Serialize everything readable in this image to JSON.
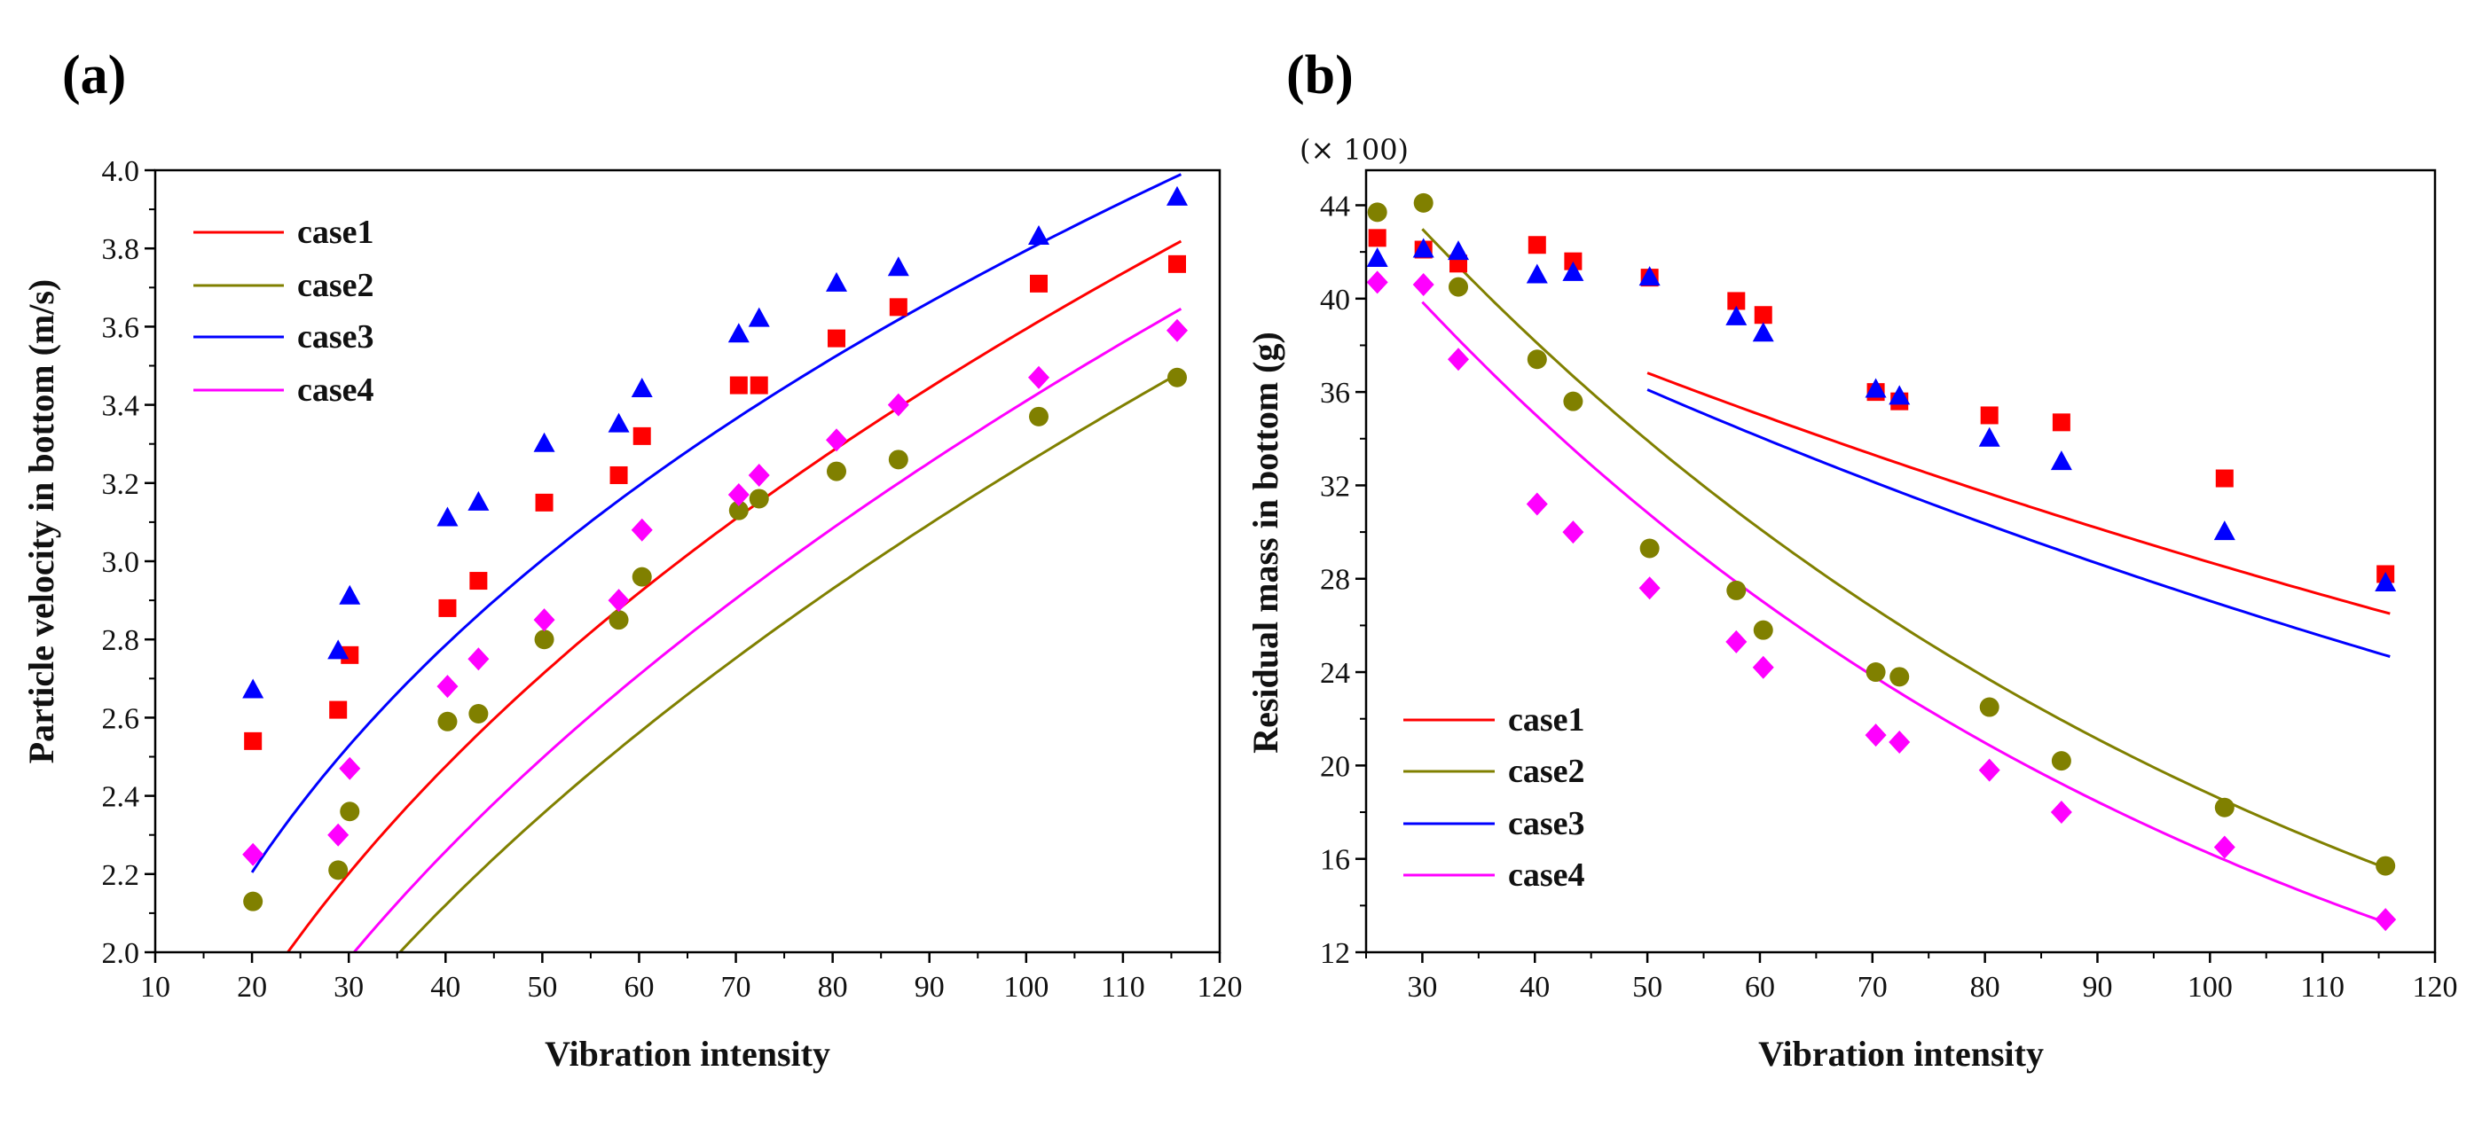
{
  "chart_data": [
    {
      "type": "scatter",
      "panel": "(a)",
      "xlabel": "Vibration intensity",
      "ylabel": "Particle velocity in bottom (m/s)",
      "xlim": [
        10,
        120
      ],
      "ylim": [
        2.0,
        4.0
      ],
      "xticks": [
        10,
        20,
        30,
        40,
        50,
        60,
        70,
        80,
        90,
        100,
        110,
        120
      ],
      "yticks": [
        2.0,
        2.2,
        2.4,
        2.6,
        2.8,
        3.0,
        3.2,
        3.4,
        3.6,
        3.8,
        4.0
      ],
      "xtick_labels": [
        "10",
        "20",
        "30",
        "40",
        "50",
        "60",
        "70",
        "80",
        "90",
        "100",
        "110",
        "120"
      ],
      "ytick_labels": [
        "2.0",
        "2.2",
        "2.4",
        "2.6",
        "2.8",
        "3.0",
        "3.2",
        "3.4",
        "3.6",
        "3.8",
        "4.0"
      ],
      "legend_position": "top-left",
      "series": [
        {
          "name": "case1",
          "color": "#ff0000",
          "marker": "square",
          "x": [
            20.1,
            28.9,
            30.1,
            40.2,
            43.4,
            50.2,
            57.9,
            60.3,
            70.3,
            72.4,
            80.4,
            86.8,
            101.3,
            115.6
          ],
          "y": [
            2.54,
            2.62,
            2.76,
            2.88,
            2.95,
            3.15,
            3.22,
            3.32,
            3.45,
            3.45,
            3.57,
            3.65,
            3.71,
            3.76
          ],
          "fit": {
            "x0": 20,
            "x1": 116,
            "a": 0.5511,
            "b": 0.4072
          }
        },
        {
          "name": "case2",
          "color": "#808000",
          "marker": "circle",
          "x": [
            20.1,
            28.9,
            30.1,
            40.2,
            43.4,
            50.2,
            57.9,
            60.3,
            70.3,
            72.4,
            80.4,
            86.8,
            101.3,
            115.6
          ],
          "y": [
            2.13,
            2.21,
            2.36,
            2.59,
            2.61,
            2.8,
            2.85,
            2.96,
            3.13,
            3.16,
            3.23,
            3.26,
            3.37,
            3.47
          ],
          "fit": {
            "x0": 20,
            "x1": 116,
            "a": 0.3798,
            "b": 0.4662
          }
        },
        {
          "name": "case3",
          "color": "#0000ff",
          "marker": "triangle",
          "x": [
            20.1,
            28.9,
            30.1,
            40.2,
            43.4,
            50.2,
            57.9,
            60.3,
            70.3,
            72.4,
            80.4,
            86.8,
            101.3,
            115.6
          ],
          "y": [
            2.67,
            2.77,
            2.91,
            3.11,
            3.15,
            3.3,
            3.35,
            3.44,
            3.58,
            3.62,
            3.71,
            3.75,
            3.83,
            3.93
          ],
          "fit": {
            "x0": 20,
            "x1": 116,
            "a": 0.802,
            "b": 0.3375
          }
        },
        {
          "name": "case4",
          "color": "#ff00ff",
          "marker": "diamond",
          "x": [
            20.1,
            28.9,
            30.1,
            40.2,
            43.4,
            50.2,
            57.9,
            60.3,
            70.3,
            72.4,
            80.4,
            86.8,
            101.3,
            115.6
          ],
          "y": [
            2.25,
            2.3,
            2.47,
            2.68,
            2.75,
            2.85,
            2.9,
            3.08,
            3.17,
            3.22,
            3.31,
            3.4,
            3.47,
            3.59
          ],
          "fit": {
            "x0": 20,
            "x1": 116,
            "a": 0.4293,
            "b": 0.45
          }
        }
      ]
    },
    {
      "type": "scatter",
      "panel": "(b)",
      "xlabel": "Vibration intensity",
      "ylabel": "Residual mass in bottom (g)",
      "multiplier": "(× 100)",
      "xlim": [
        25,
        120
      ],
      "ylim": [
        12,
        45.5
      ],
      "xticks": [
        30,
        40,
        50,
        60,
        70,
        80,
        90,
        100,
        110,
        120
      ],
      "yticks": [
        12,
        16,
        20,
        24,
        28,
        32,
        36,
        40,
        44
      ],
      "xtick_labels": [
        "30",
        "40",
        "50",
        "60",
        "70",
        "80",
        "90",
        "100",
        "110",
        "120"
      ],
      "ytick_labels": [
        "12",
        "16",
        "20",
        "24",
        "28",
        "32",
        "36",
        "40",
        "44"
      ],
      "legend_position": "bottom-left",
      "series": [
        {
          "name": "case1",
          "color": "#ff0000",
          "marker": "square",
          "x": [
            26.0,
            30.1,
            33.2,
            40.2,
            43.4,
            50.2,
            57.9,
            60.3,
            70.3,
            72.4,
            80.4,
            86.8,
            101.3,
            115.6
          ],
          "y": [
            42.6,
            42.1,
            41.5,
            42.3,
            41.6,
            40.9,
            39.9,
            39.3,
            36.0,
            35.6,
            35.0,
            34.7,
            32.3,
            28.2
          ],
          "fit": {
            "x0": 50,
            "x1": 116,
            "A": 41.7,
            "k": 0.00498
          }
        },
        {
          "name": "case2",
          "color": "#808000",
          "marker": "circle",
          "x": [
            26.0,
            30.1,
            33.2,
            40.2,
            43.4,
            50.2,
            57.9,
            60.3,
            70.3,
            72.4,
            80.4,
            86.8,
            101.3,
            115.6
          ],
          "y": [
            43.7,
            44.1,
            40.5,
            37.4,
            35.6,
            29.3,
            27.5,
            25.8,
            24.0,
            23.8,
            22.5,
            20.2,
            18.2,
            15.7
          ],
          "fit": {
            "x0": 30,
            "x1": 116,
            "A": 45.6,
            "k": 0.01183
          }
        },
        {
          "name": "case3",
          "color": "#0000ff",
          "marker": "triangle",
          "x": [
            26.0,
            30.1,
            33.2,
            40.2,
            43.4,
            50.2,
            57.9,
            60.3,
            70.3,
            72.4,
            80.4,
            86.8,
            101.3,
            115.6
          ],
          "y": [
            41.7,
            42.1,
            42.0,
            41.0,
            41.1,
            40.9,
            39.2,
            38.5,
            36.1,
            35.8,
            34.0,
            33.0,
            30.0,
            27.8
          ],
          "fit": {
            "x0": 50,
            "x1": 116,
            "A": 41.7,
            "k": 0.00577
          }
        },
        {
          "name": "case4",
          "color": "#ff00ff",
          "marker": "diamond",
          "x": [
            26.0,
            30.1,
            33.2,
            40.2,
            43.4,
            50.2,
            57.9,
            60.3,
            70.3,
            72.4,
            80.4,
            86.8,
            101.3,
            115.6
          ],
          "y": [
            40.7,
            40.6,
            37.4,
            31.2,
            30.0,
            27.6,
            25.3,
            24.2,
            21.3,
            21.0,
            19.8,
            18.0,
            16.5,
            13.4
          ],
          "fit": {
            "x0": 30,
            "x1": 116,
            "A": 42.5,
            "k": 0.01284
          }
        }
      ]
    }
  ]
}
